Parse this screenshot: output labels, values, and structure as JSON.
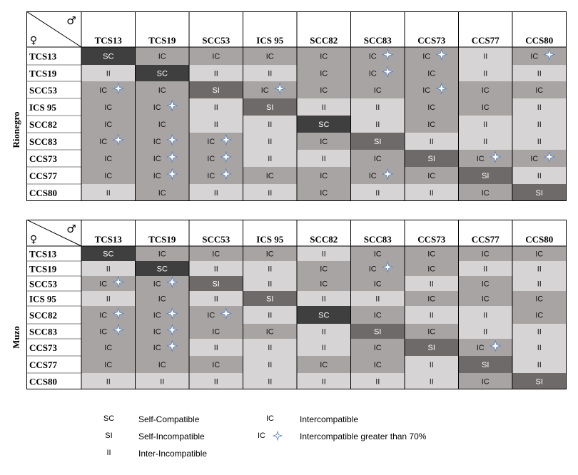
{
  "colors": {
    "SC": "#3f3f3f",
    "SI": "#6f6a6a",
    "IC": "#a8a4a4",
    "II": "#d6d4d4",
    "header_bg": "#ffffff",
    "star": "#ffffff",
    "star_stroke": "#4f7fbf"
  },
  "symbols": {
    "male": "♂",
    "female": "♀"
  },
  "chart_data": [
    {
      "type": "table",
      "title": "Rionegro",
      "columns": [
        "TCS13",
        "TCS19",
        "SCC53",
        "ICS 95",
        "SCC82",
        "SCC83",
        "CCS73",
        "CCS77",
        "CCS80"
      ],
      "rows": [
        "TCS13",
        "TCS19",
        "SCC53",
        "ICS 95",
        "SCC82",
        "SCC83",
        "CCS73",
        "CCS77",
        "CCS80"
      ],
      "cells": [
        [
          "SC",
          "IC",
          "IC",
          "IC",
          "IC",
          "IC*",
          "IC*",
          "II",
          "IC*"
        ],
        [
          "II",
          "SC",
          "II",
          "II",
          "IC",
          "IC*",
          "IC",
          "II",
          "II"
        ],
        [
          "IC*",
          "IC",
          "SI",
          "IC*",
          "IC",
          "IC",
          "IC*",
          "IC",
          "IC"
        ],
        [
          "IC",
          "IC*",
          "II",
          "SI",
          "II",
          "II",
          "IC",
          "IC",
          "II"
        ],
        [
          "IC",
          "IC",
          "II",
          "II",
          "SC",
          "II",
          "IC",
          "II",
          "II"
        ],
        [
          "IC*",
          "IC*",
          "IC*",
          "II",
          "IC",
          "SI",
          "II",
          "II",
          "II"
        ],
        [
          "IC",
          "IC*",
          "IC*",
          "II",
          "II",
          "IC",
          "SI",
          "IC*",
          "IC*"
        ],
        [
          "IC",
          "IC*",
          "IC*",
          "IC",
          "IC",
          "IC*",
          "IC",
          "SI",
          "II"
        ],
        [
          "II",
          "IC",
          "II",
          "II",
          "IC",
          "II",
          "II",
          "IC",
          "SI"
        ]
      ]
    },
    {
      "type": "table",
      "title": "Muzo",
      "columns": [
        "TCS13",
        "TCS19",
        "SCC53",
        "ICS 95",
        "SCC82",
        "SCC83",
        "CCS73",
        "CCS77",
        "CCS80"
      ],
      "rows": [
        "TCS13",
        "TCS19",
        "SCC53",
        "ICS 95",
        "SCC82",
        "SCC83",
        "CCS73",
        "CCS77",
        "CCS80"
      ],
      "cells": [
        [
          "SC",
          "IC",
          "IC",
          "IC",
          "II",
          "IC",
          "IC",
          "IC",
          "IC"
        ],
        [
          "II",
          "SC",
          "II",
          "II",
          "IC",
          "IC*",
          "IC",
          "II",
          "II"
        ],
        [
          "IC*",
          "IC*",
          "SI",
          "II",
          "IC",
          "IC",
          "II",
          "IC",
          "II"
        ],
        [
          "II",
          "IC",
          "II",
          "SI",
          "II",
          "II",
          "IC",
          "IC",
          "IC"
        ],
        [
          "IC*",
          "IC*",
          "IC*",
          "II",
          "SC",
          "IC",
          "II",
          "II",
          "IC"
        ],
        [
          "IC*",
          "IC*",
          "IC",
          "IC",
          "II",
          "SI",
          "IC",
          "II",
          "II"
        ],
        [
          "IC",
          "IC*",
          "II",
          "II",
          "II",
          "IC",
          "SI",
          "IC*",
          "II"
        ],
        [
          "IC",
          "IC",
          "IC",
          "II",
          "IC",
          "IC",
          "II",
          "SI",
          "II"
        ],
        [
          "II",
          "II",
          "II",
          "II",
          "II",
          "II",
          "II",
          "IC",
          "SI"
        ]
      ]
    }
  ],
  "legend": [
    {
      "code": "SC",
      "label": "Self-Compatible",
      "star": false
    },
    {
      "code": "SI",
      "label": "Self-Incompatible",
      "star": false
    },
    {
      "code": "II",
      "label": "Inter-Incompatible",
      "star": false
    },
    {
      "code": "IC",
      "label": "Intercompatible",
      "star": false
    },
    {
      "code": "IC",
      "label": "Intercompatible greater than 70%",
      "star": true
    }
  ]
}
